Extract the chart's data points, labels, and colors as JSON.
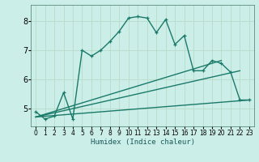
{
  "xlabel": "Humidex (Indice chaleur)",
  "bg_color": "#cceee8",
  "grid_color": "#bbddcc",
  "line_color": "#1a7a6a",
  "xlim": [
    -0.5,
    23.5
  ],
  "ylim": [
    4.4,
    8.55
  ],
  "yticks": [
    5,
    6,
    7,
    8
  ],
  "xticks": [
    0,
    1,
    2,
    3,
    4,
    5,
    6,
    7,
    8,
    9,
    10,
    11,
    12,
    13,
    14,
    15,
    16,
    17,
    18,
    19,
    20,
    21,
    22,
    23
  ],
  "curve1_x": [
    0,
    1,
    2,
    3,
    4,
    5,
    6,
    7,
    8,
    9,
    10,
    11,
    12,
    13,
    14,
    15,
    16,
    17,
    18,
    19,
    20,
    21,
    22,
    23
  ],
  "curve1_y": [
    4.9,
    4.65,
    4.75,
    5.55,
    4.65,
    7.0,
    6.8,
    7.0,
    7.3,
    7.65,
    8.1,
    8.15,
    8.1,
    7.6,
    8.05,
    7.2,
    7.5,
    6.3,
    6.3,
    6.65,
    6.55,
    6.25,
    5.3,
    5.3
  ],
  "curve2_x": [
    0,
    23
  ],
  "curve2_y": [
    4.72,
    5.3
  ],
  "curve3_x": [
    0,
    22
  ],
  "curve3_y": [
    4.72,
    6.3
  ],
  "curve4_x": [
    0,
    20
  ],
  "curve4_y": [
    4.72,
    6.65
  ]
}
